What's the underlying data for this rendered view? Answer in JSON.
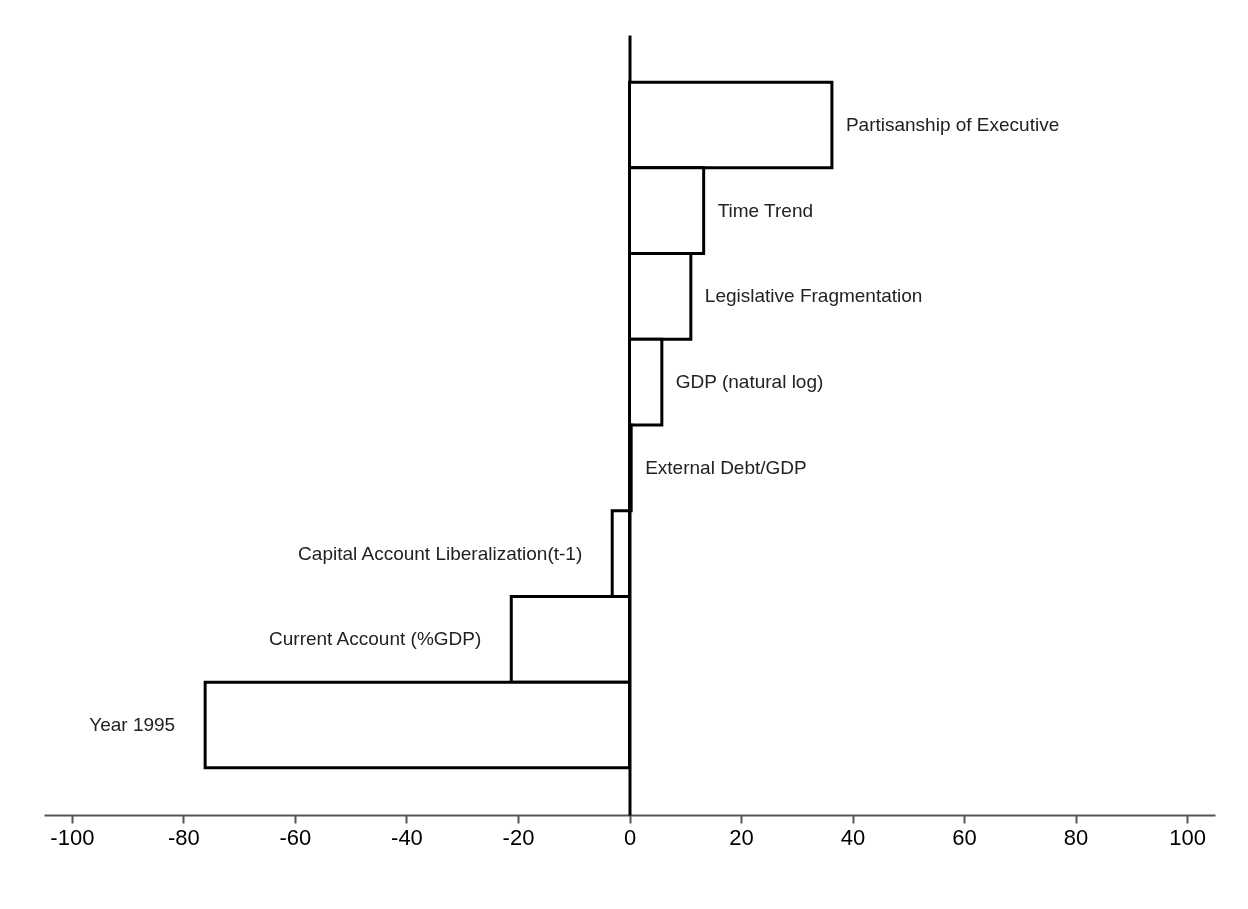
{
  "chart_data": {
    "type": "bar",
    "orientation": "horizontal",
    "categories": [
      "Partisanship of Executive",
      "Time Trend",
      "Legislative Fragmentation",
      "GDP (natural log)",
      "External Debt/GDP",
      "Capital Account Liberalization(t-1)",
      "Current Account (%GDP)",
      "Year 1995"
    ],
    "series": [
      {
        "color": "#ffffff",
        "values": [
          36.3,
          13.3,
          11.0,
          5.8,
          0.3,
          -3.1,
          -21.2,
          -76.1
        ]
      }
    ],
    "xlim": [
      -105,
      105
    ],
    "xticks": [
      -100,
      -80,
      -60,
      -40,
      -20,
      0,
      20,
      40,
      60,
      80,
      100
    ],
    "tick_labels": "x"
  }
}
